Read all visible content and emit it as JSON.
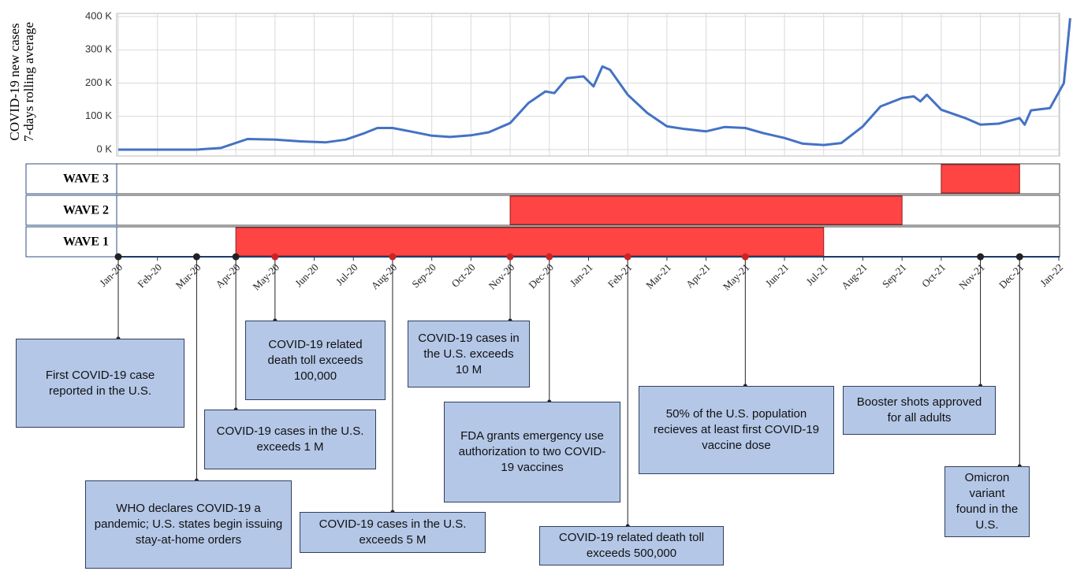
{
  "chart_data": {
    "type": "line",
    "ylabel": [
      "COVID-19 new cases",
      "7-days rolling average"
    ],
    "xlim": [
      "2020-01-01",
      "2022-01-01"
    ],
    "xticks": [
      {
        "value": "2020-01-01",
        "label": "Jan-20"
      },
      {
        "value": "2020-02-01",
        "label": "Feb-20"
      },
      {
        "value": "2020-03-01",
        "label": "Mar-20"
      },
      {
        "value": "2020-04-01",
        "label": "Apr-20"
      },
      {
        "value": "2020-05-01",
        "label": "May-20"
      },
      {
        "value": "2020-06-01",
        "label": "Jun-20"
      },
      {
        "value": "2020-07-01",
        "label": "Jul-20"
      },
      {
        "value": "2020-08-01",
        "label": "Aug-20"
      },
      {
        "value": "2020-09-01",
        "label": "Sep-20"
      },
      {
        "value": "2020-10-01",
        "label": "Oct-20"
      },
      {
        "value": "2020-11-01",
        "label": "Nov-20"
      },
      {
        "value": "2020-12-01",
        "label": "Dec-20"
      },
      {
        "value": "2021-01-01",
        "label": "Jan-21"
      },
      {
        "value": "2021-02-01",
        "label": "Feb-21"
      },
      {
        "value": "2021-03-01",
        "label": "Mar-21"
      },
      {
        "value": "2021-04-01",
        "label": "Apr-21"
      },
      {
        "value": "2021-05-01",
        "label": "May-21"
      },
      {
        "value": "2021-06-01",
        "label": "Jun-21"
      },
      {
        "value": "2021-07-01",
        "label": "Jul-21"
      },
      {
        "value": "2021-08-01",
        "label": "Aug-21"
      },
      {
        "value": "2021-09-01",
        "label": "Sep-21"
      },
      {
        "value": "2021-10-01",
        "label": "Oct-21"
      },
      {
        "value": "2021-11-01",
        "label": "Nov-21"
      },
      {
        "value": "2021-12-01",
        "label": "Dec-21"
      },
      {
        "value": "2022-01-01",
        "label": "Jan-22"
      }
    ],
    "ylim": [
      0,
      400000
    ],
    "yticks": [
      {
        "value": 0,
        "label": "0 K"
      },
      {
        "value": 100000,
        "label": "100 K"
      },
      {
        "value": 200000,
        "label": "200 K"
      },
      {
        "value": 300000,
        "label": "300 K"
      },
      {
        "value": 400000,
        "label": "400 K"
      }
    ],
    "grid": true,
    "x": [
      "2020-01-01",
      "2020-03-01",
      "2020-03-20",
      "2020-04-10",
      "2020-05-01",
      "2020-05-20",
      "2020-06-10",
      "2020-06-25",
      "2020-07-10",
      "2020-07-20",
      "2020-08-01",
      "2020-08-15",
      "2020-09-01",
      "2020-09-15",
      "2020-10-01",
      "2020-10-15",
      "2020-11-01",
      "2020-11-15",
      "2020-11-28",
      "2020-12-05",
      "2020-12-15",
      "2020-12-28",
      "2021-01-05",
      "2021-01-12",
      "2021-01-18",
      "2021-02-01",
      "2021-02-15",
      "2021-03-01",
      "2021-03-15",
      "2021-04-01",
      "2021-04-15",
      "2021-05-01",
      "2021-05-15",
      "2021-06-01",
      "2021-06-15",
      "2021-07-01",
      "2021-07-15",
      "2021-08-01",
      "2021-08-15",
      "2021-09-01",
      "2021-09-10",
      "2021-09-15",
      "2021-09-20",
      "2021-10-01",
      "2021-10-20",
      "2021-11-01",
      "2021-11-15",
      "2021-12-01",
      "2021-12-05",
      "2021-12-10",
      "2021-12-25",
      "2022-01-05",
      "2022-01-10"
    ],
    "series": [
      {
        "color": "#4472c4",
        "values": [
          0,
          0,
          5000,
          32000,
          30000,
          25000,
          22000,
          30000,
          50000,
          65000,
          65000,
          55000,
          42000,
          38000,
          43000,
          52000,
          80000,
          140000,
          175000,
          170000,
          215000,
          220000,
          190000,
          250000,
          240000,
          165000,
          110000,
          70000,
          62000,
          55000,
          68000,
          65000,
          50000,
          35000,
          18000,
          14000,
          20000,
          70000,
          130000,
          155000,
          160000,
          145000,
          165000,
          120000,
          95000,
          75000,
          78000,
          95000,
          75000,
          118000,
          125000,
          200000,
          395000
        ]
      }
    ],
    "waves": [
      {
        "name": "WAVE 3",
        "start": "2021-10-01",
        "end": "2021-12-01",
        "color": "#ff4444"
      },
      {
        "name": "WAVE 2",
        "start": "2020-11-01",
        "end": "2021-09-01",
        "color": "#ff4444"
      },
      {
        "name": "WAVE 1",
        "start": "2020-04-01",
        "end": "2021-07-01",
        "color": "#ff4444"
      }
    ],
    "events": [
      {
        "date": "2020-01-01",
        "text": "First COVID-19 case reported in the U.S."
      },
      {
        "date": "2020-03-01",
        "text": "WHO declares COVID-19 a pandemic; U.S. states begin issuing stay-at-home orders"
      },
      {
        "date": "2020-04-01",
        "text": "COVID-19 cases in the U.S. exceeds 1 M"
      },
      {
        "date": "2020-05-01",
        "text": "COVID-19 related death toll exceeds 100,000"
      },
      {
        "date": "2020-08-01",
        "text": "COVID-19 cases in the U.S. exceeds 5 M"
      },
      {
        "date": "2020-11-01",
        "text": "COVID-19 cases in the U.S. exceeds 10 M"
      },
      {
        "date": "2020-12-01",
        "text": "FDA grants emergency use authorization to two COVID-19 vaccines"
      },
      {
        "date": "2021-02-01",
        "text": "COVID-19 related death toll exceeds 500,000"
      },
      {
        "date": "2021-05-01",
        "text": "50% of the U.S. population recieves at least first COVID-19 vaccine dose"
      },
      {
        "date": "2021-11-01",
        "text": "Booster shots approved for all adults"
      },
      {
        "date": "2021-12-01",
        "text": "Omicron variant found in the U.S."
      }
    ]
  }
}
